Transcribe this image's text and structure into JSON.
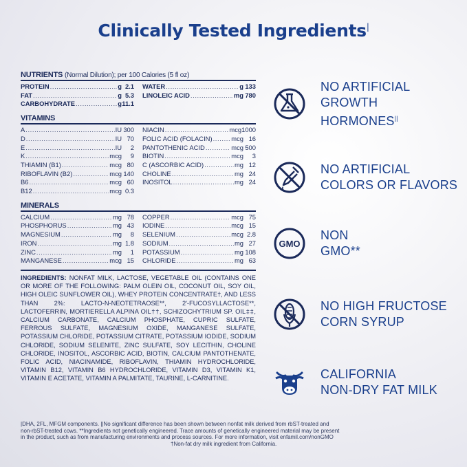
{
  "title": "Clinically Tested Ingredients",
  "title_mark": "|",
  "nutrients": {
    "header": "NUTRIENTS",
    "subheader": "(Normal Dilution); per 100 Calories (5 fl oz)",
    "left": [
      {
        "name": "PROTEIN",
        "unit": "g",
        "value": "2.1"
      },
      {
        "name": "FAT",
        "unit": "g",
        "value": "5.3"
      },
      {
        "name": "CARBOHYDRATE",
        "unit": "g",
        "value": "11.1"
      }
    ],
    "right": [
      {
        "name": "WATER",
        "unit": "g",
        "value": "133"
      },
      {
        "name": "LINOLEIC ACID",
        "unit": "mg",
        "value": "780"
      }
    ]
  },
  "vitamins": {
    "header": "VITAMINS",
    "left": [
      {
        "name": "A",
        "unit": "IU",
        "value": "300"
      },
      {
        "name": "D",
        "unit": "IU",
        "value": "70"
      },
      {
        "name": "E",
        "unit": "IU",
        "value": "2"
      },
      {
        "name": "K",
        "unit": "mcg",
        "value": "9"
      },
      {
        "name": "THIAMIN (B1)",
        "unit": "mcg",
        "value": "80"
      },
      {
        "name": "RIBOFLAVIN (B2)",
        "unit": "mcg",
        "value": "140"
      },
      {
        "name": "B6",
        "unit": "mcg",
        "value": "60"
      },
      {
        "name": "B12",
        "unit": "mcg",
        "value": "0.3"
      }
    ],
    "right": [
      {
        "name": "NIACIN",
        "unit": "mcg",
        "value": "1000"
      },
      {
        "name": "FOLIC ACID (FOLACIN)",
        "unit": "mcg",
        "value": "16"
      },
      {
        "name": "PANTOTHENIC ACID",
        "unit": "mcg",
        "value": "500"
      },
      {
        "name": "BIOTIN",
        "unit": "mcg",
        "value": "3"
      },
      {
        "name": "C (ASCORBIC ACID)",
        "unit": "mg",
        "value": "12"
      },
      {
        "name": "CHOLINE",
        "unit": "mg",
        "value": "24"
      },
      {
        "name": "INOSITOL",
        "unit": "mg",
        "value": "24"
      }
    ]
  },
  "minerals": {
    "header": "MINERALS",
    "left": [
      {
        "name": "CALCIUM",
        "unit": "mg",
        "value": "78"
      },
      {
        "name": "PHOSPHORUS",
        "unit": "mg",
        "value": "43"
      },
      {
        "name": "MAGNESIUM",
        "unit": "mg",
        "value": "8"
      },
      {
        "name": "IRON",
        "unit": "mg",
        "value": "1.8"
      },
      {
        "name": "ZINC",
        "unit": "mg",
        "value": "1"
      },
      {
        "name": "MANGANESE",
        "unit": "mcg",
        "value": "15"
      }
    ],
    "right": [
      {
        "name": "COPPER",
        "unit": "mcg",
        "value": "75"
      },
      {
        "name": "IODINE",
        "unit": "mcg",
        "value": "15"
      },
      {
        "name": "SELENIUM",
        "unit": "mcg",
        "value": "2.8"
      },
      {
        "name": "SODIUM",
        "unit": "mg",
        "value": "27"
      },
      {
        "name": "POTASSIUM",
        "unit": "mg",
        "value": "108"
      },
      {
        "name": "CHLORIDE",
        "unit": "mg",
        "value": "63"
      }
    ]
  },
  "ingredients": {
    "label": "INGREDIENTS:",
    "text": "NONFAT MILK, LACTOSE, VEGETABLE OIL (CONTAINS ONE OR MORE OF THE FOLLOWING: PALM OLEIN OIL, COCONUT OIL, SOY OIL, HIGH OLEIC SUNFLOWER OIL), WHEY PROTEIN CONCENTRATE†, AND LESS THAN 2%: LACTO-N-NEOTETRAOSE**, 2'-FUCOSYLLACTOSE**, LACTOFERRIN, MORTIERELLA ALPINA OIL††, SCHIZOCHYTRIUM SP. OIL‡‡, CALCIUM CARBONATE, CALCIUM PHOSPHATE, CUPRIC SULFATE, FERROUS SULFATE, MAGNESIUM OXIDE, MANGANESE SULFATE, POTASSIUM CHLORIDE, POTASSIUM CITRATE, POTASSIUM IODIDE, SODIUM CHLORIDE, SODIUM SELENITE, ZINC SULFATE, SOY LECITHIN, CHOLINE CHLORIDE, INOSITOL, ASCORBIC ACID, BIOTIN, CALCIUM PANTOTHENATE, FOLIC ACID, NIACINAMIDE, RIBOFLAVIN, THIAMIN HYDROCHLORIDE, VITAMIN B12, VITAMIN B6 HYDROCHLORIDE, VITAMIN D3, VITAMIN K1, VITAMIN E ACETATE, VITAMIN A PALMITATE, TAURINE, L-CARNITINE."
  },
  "footnotes": [
    "|DHA, 2FL, MFGM components. ||No significant difference has been shown between nonfat milk derived from rbST-treated and",
    "non-rbST-treated cows. **Ingredients not genetically engineered. Trace amounts of genetically engineered material may be present",
    "in the product, such as from manufacturing environments and process sources. For more information, visit enfamil.com/nonGMO",
    "†Non-fat dry milk ingredient from California."
  ],
  "claims": [
    {
      "icon": "flask-crossed-icon",
      "line1": "NO ARTIFICIAL",
      "line2": "GROWTH",
      "line3": "HORMONES",
      "mark": "||"
    },
    {
      "icon": "dropper-crossed-icon",
      "line1": "NO ARTIFICIAL",
      "line2": "COLORS OR FLAVORS"
    },
    {
      "icon": "gmo-badge-icon",
      "icon_text": "GMO",
      "line1": "NON",
      "line2": "GMO**"
    },
    {
      "icon": "corn-crossed-icon",
      "line1": "NO HIGH FRUCTOSE",
      "line2": "CORN SYRUP"
    },
    {
      "icon": "cow-icon",
      "line1": "CALIFORNIA",
      "line2": "NON-DRY FAT MILK"
    }
  ],
  "colors": {
    "brand_blue": "#1a3f8c",
    "navy": "#1b2a5a"
  }
}
